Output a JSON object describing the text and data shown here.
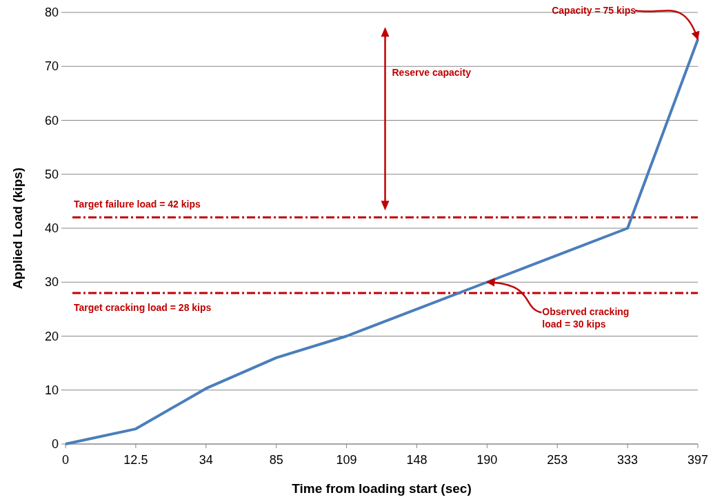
{
  "chart_data": {
    "type": "line",
    "xlabel": "Time from loading start (sec)",
    "ylabel": "Applied Load (kips)",
    "categories": [
      "0",
      "12.5",
      "34",
      "85",
      "109",
      "148",
      "190",
      "253",
      "333",
      "397"
    ],
    "series": [
      {
        "color": "#4a7ebb",
        "values": [
          0,
          2.8,
          10.3,
          16,
          20,
          25,
          30,
          35,
          40,
          75
        ]
      }
    ],
    "ylim": [
      0,
      80
    ],
    "yticks": [
      0,
      10,
      20,
      30,
      40,
      50,
      60,
      70,
      80
    ],
    "grid": "y",
    "marker": "none",
    "line_style": "solid",
    "ref_lines": [
      {
        "axis": "y",
        "value": 42,
        "label": "Target failure load = 42 kips",
        "color": "#c00000",
        "line_style": "dashed"
      },
      {
        "axis": "y",
        "value": 28,
        "label": "Target cracking load = 28 kips",
        "color": "#c00000",
        "line_style": "dashed"
      }
    ],
    "annotations": [
      {
        "text": "Capacity = 75 kips",
        "x": "397",
        "y": 75
      },
      {
        "text": "Observed cracking load = 30 kips",
        "x": "190",
        "y": 30
      },
      "Reserve capacity"
    ]
  }
}
